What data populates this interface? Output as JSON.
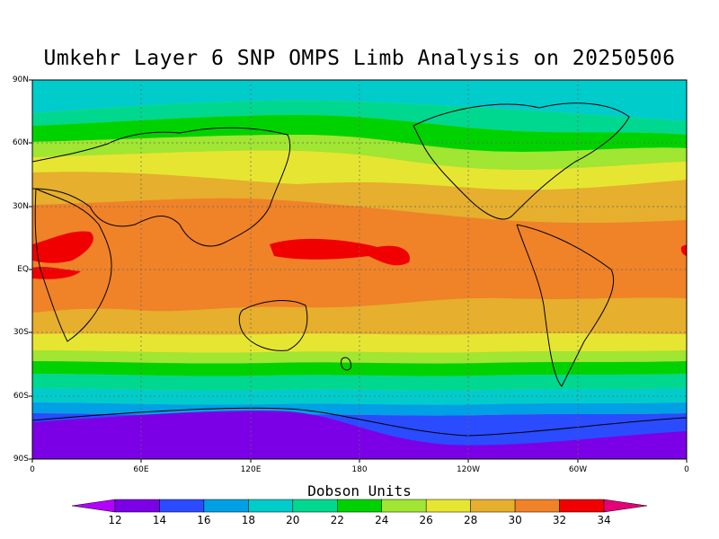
{
  "title": "Umkehr Layer 6 SNP OMPS Limb Analysis on 20250506",
  "lat_ticks": [
    "90N",
    "60N",
    "30N",
    "EQ",
    "30S",
    "60S",
    "90S"
  ],
  "lon_ticks": [
    "0",
    "60E",
    "120E",
    "180",
    "120W",
    "60W",
    "0"
  ],
  "colorbar": {
    "title": "Dobson Units",
    "labels": [
      "12",
      "14",
      "16",
      "18",
      "20",
      "22",
      "24",
      "26",
      "28",
      "30",
      "32",
      "34"
    ],
    "colors": [
      "#b400ff",
      "#7b00e6",
      "#2b4bff",
      "#00a0e6",
      "#00cccc",
      "#00d890",
      "#00d200",
      "#a0e632",
      "#e6e632",
      "#e6af2d",
      "#f08228",
      "#f00000",
      "#e60078"
    ]
  },
  "map": {
    "band_colors": [
      "#00cccc",
      "#00d890",
      "#00d200",
      "#a0e632",
      "#e6e632",
      "#e6af2d",
      "#f08228",
      "#f00000",
      "#00a0e6",
      "#2b4bff",
      "#7b00e6"
    ]
  }
}
